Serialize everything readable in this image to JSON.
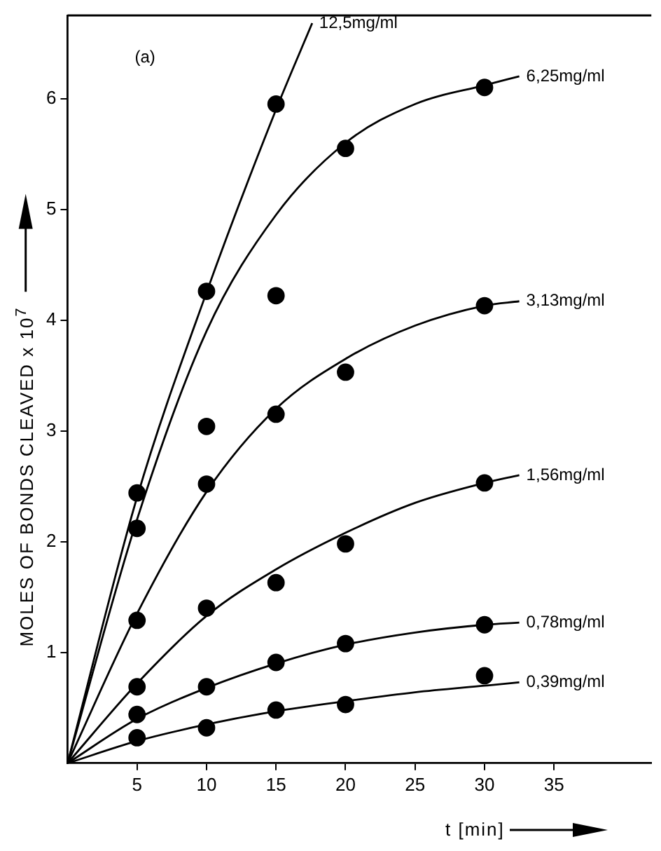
{
  "chart_data": {
    "type": "scatter",
    "xlabel": "t [min]",
    "ylabel": "MOLES OF BONDS CLEAVED x 10$^{7}$",
    "annotations": [
      "(a)"
    ],
    "xlim": [
      0,
      42
    ],
    "xticks": [
      5,
      10,
      15,
      20,
      25,
      30,
      35
    ],
    "ylim": [
      0,
      6.75
    ],
    "yticks": [
      1,
      2,
      3,
      4,
      5,
      6
    ],
    "grid": false,
    "legend": false,
    "series": [
      {
        "type": "scatter",
        "marker": "circle",
        "color": "#000000",
        "x": [
          5,
          10,
          15
        ],
        "values": [
          2.44,
          4.26,
          5.95
        ]
      },
      {
        "type": "scatter",
        "marker": "circle",
        "color": "#000000",
        "x": [
          5,
          10,
          15,
          20,
          30
        ],
        "values": [
          2.12,
          3.04,
          4.22,
          5.55,
          6.1
        ]
      },
      {
        "type": "scatter",
        "marker": "circle",
        "color": "#000000",
        "x": [
          5,
          10,
          15,
          20,
          30
        ],
        "values": [
          1.29,
          2.52,
          3.15,
          3.53,
          4.13
        ]
      },
      {
        "type": "scatter",
        "marker": "circle",
        "color": "#000000",
        "x": [
          5,
          10,
          15,
          20,
          30
        ],
        "values": [
          0.69,
          1.4,
          1.63,
          1.98,
          2.53
        ]
      },
      {
        "type": "scatter",
        "marker": "circle",
        "color": "#000000",
        "x": [
          5,
          10,
          15,
          20,
          30
        ],
        "values": [
          0.44,
          0.69,
          0.91,
          1.08,
          1.25
        ]
      },
      {
        "type": "scatter",
        "marker": "circle",
        "color": "#000000",
        "x": [
          5,
          10,
          15,
          20,
          30
        ],
        "values": [
          0.23,
          0.32,
          0.48,
          0.53,
          0.79
        ]
      },
      {
        "type": "line",
        "marker": "none",
        "name": "12,5mg/ml",
        "color": "#000000",
        "x": [
          0,
          5,
          10,
          15,
          17.6
        ],
        "values": [
          0,
          2.4,
          4.25,
          5.9,
          6.68
        ]
      },
      {
        "type": "line",
        "marker": "none",
        "name": "6,25mg/ml",
        "color": "#000000",
        "x": [
          0,
          5,
          10,
          15,
          20,
          25,
          30,
          32.5
        ],
        "values": [
          0,
          2.2,
          3.9,
          4.95,
          5.6,
          5.95,
          6.12,
          6.2
        ]
      },
      {
        "type": "line",
        "marker": "none",
        "name": "3,13mg/ml",
        "color": "#000000",
        "x": [
          0,
          5,
          10,
          15,
          20,
          25,
          30,
          32.5
        ],
        "values": [
          0,
          1.35,
          2.45,
          3.2,
          3.65,
          3.95,
          4.13,
          4.17
        ]
      },
      {
        "type": "line",
        "marker": "none",
        "name": "1,56mg/ml",
        "color": "#000000",
        "x": [
          0,
          5,
          10,
          15,
          20,
          25,
          30,
          32.5
        ],
        "values": [
          0,
          0.72,
          1.33,
          1.75,
          2.08,
          2.35,
          2.53,
          2.6
        ]
      },
      {
        "type": "line",
        "marker": "none",
        "name": "0,78mg/ml",
        "color": "#000000",
        "x": [
          0,
          5,
          10,
          15,
          20,
          25,
          30,
          32.5
        ],
        "values": [
          0,
          0.4,
          0.68,
          0.9,
          1.07,
          1.18,
          1.25,
          1.27
        ]
      },
      {
        "type": "line",
        "marker": "none",
        "name": "0,39mg/ml",
        "color": "#000000",
        "x": [
          0,
          5,
          10,
          15,
          20,
          25,
          30,
          32.5
        ],
        "values": [
          0,
          0.2,
          0.35,
          0.47,
          0.56,
          0.64,
          0.7,
          0.73
        ]
      }
    ]
  }
}
